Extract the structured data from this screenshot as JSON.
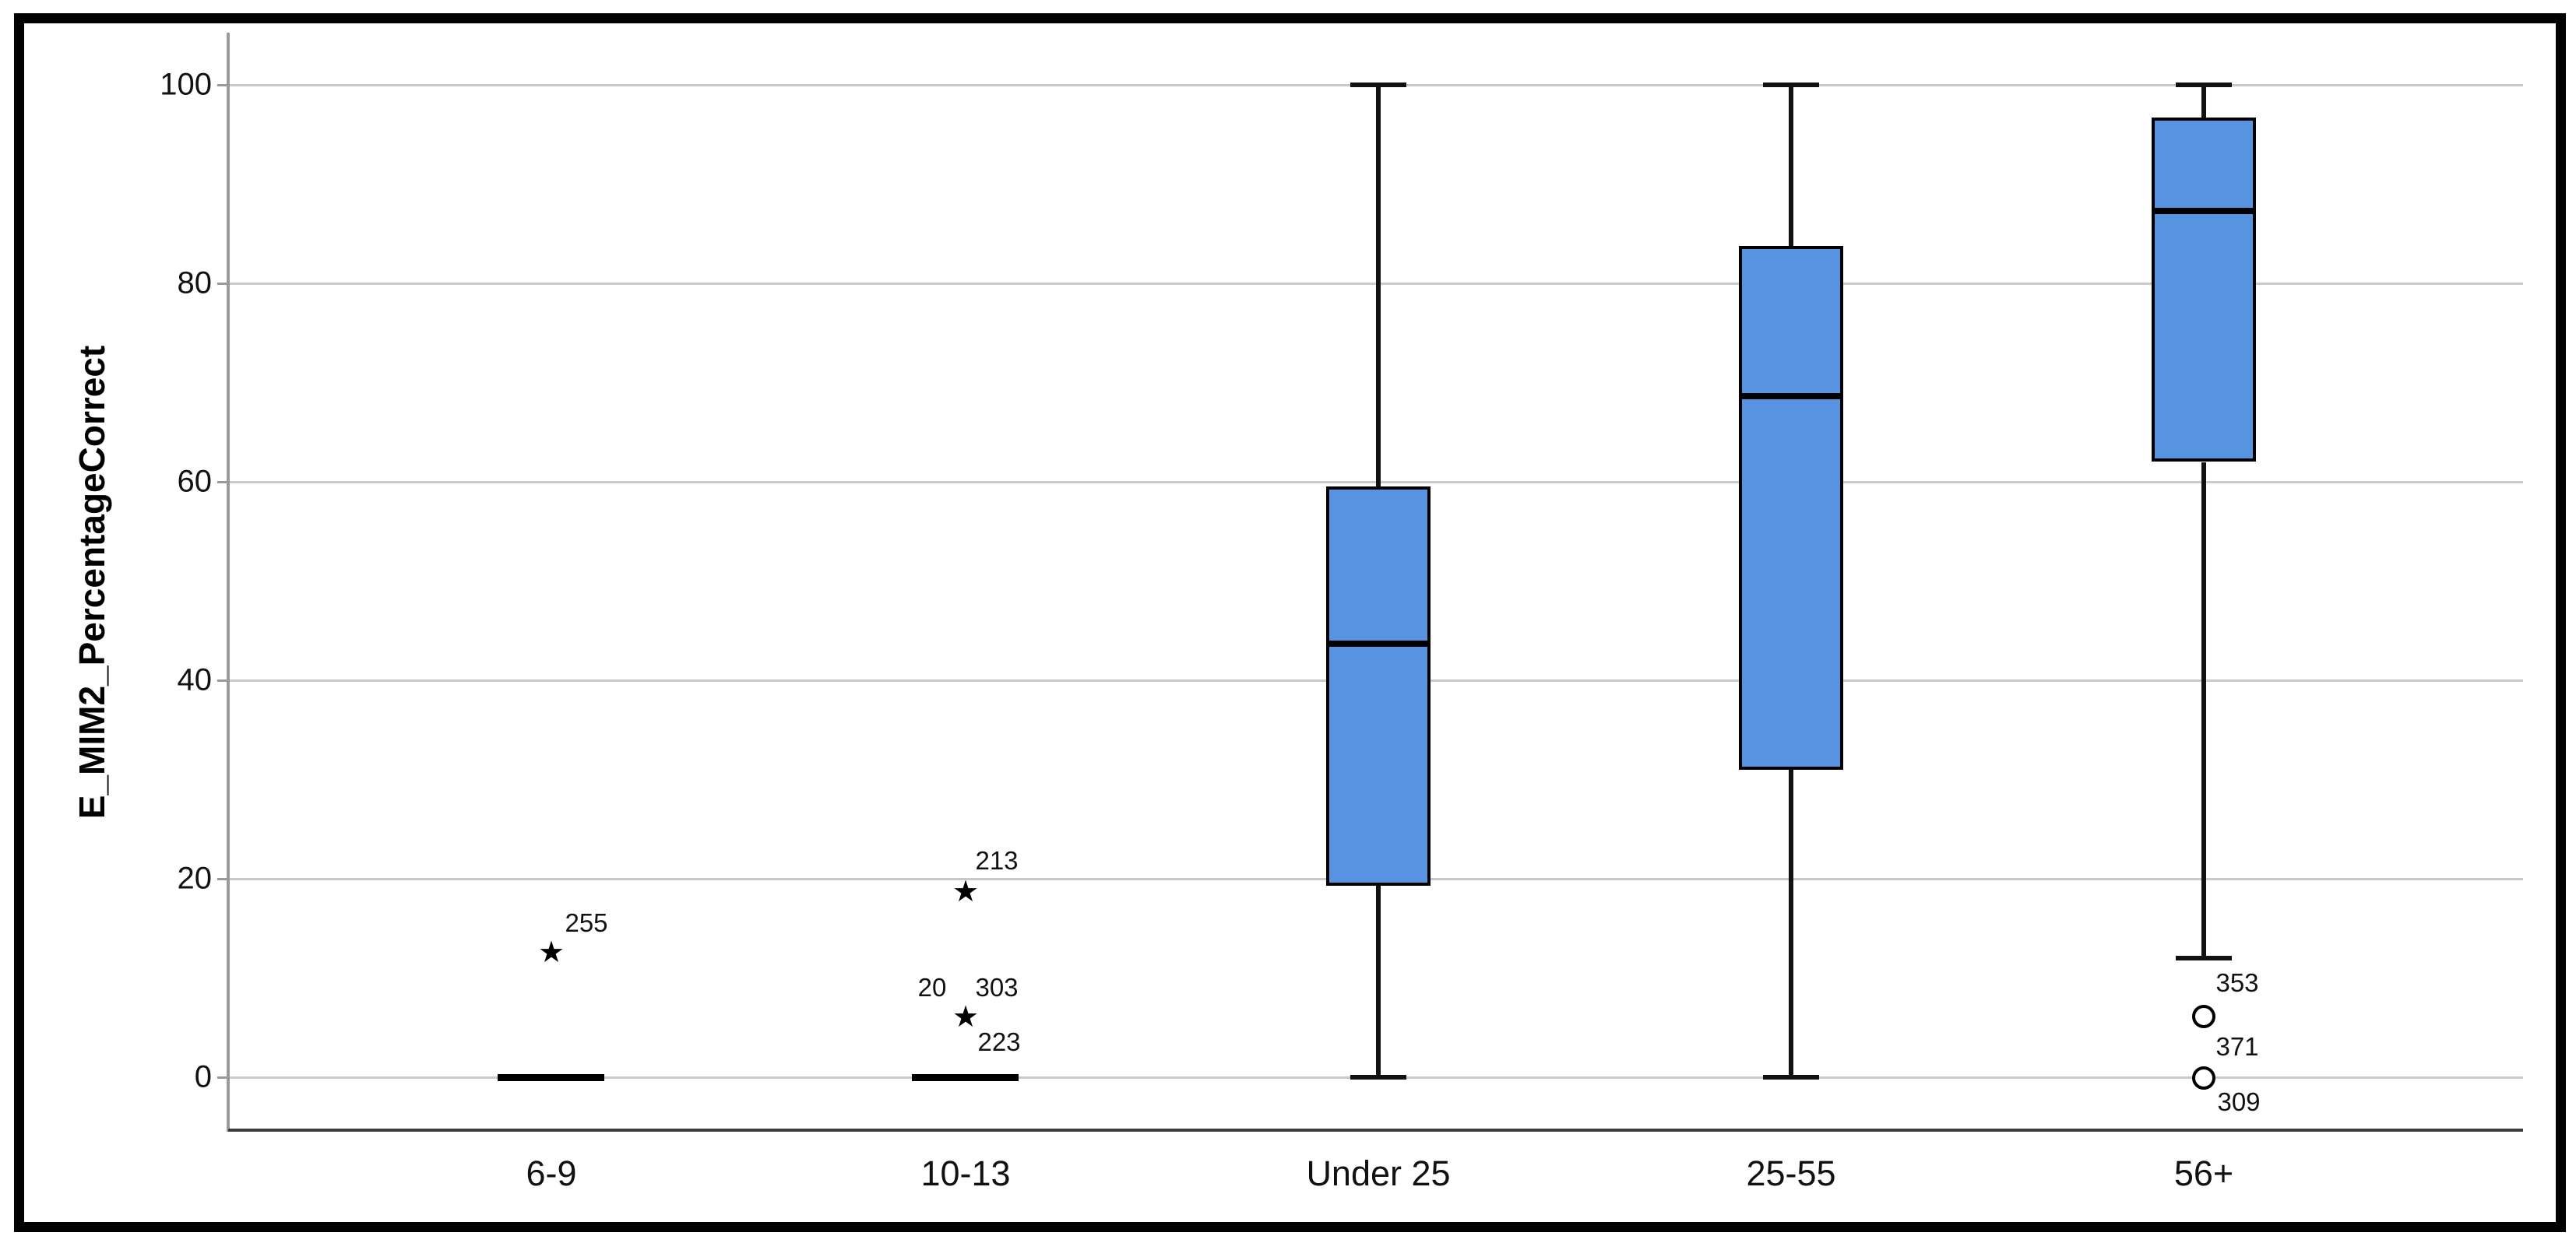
{
  "chart_data": {
    "type": "boxplot",
    "title": "",
    "xlabel": "",
    "ylabel": "E_MIM2_PercentageCorrect",
    "ylim": [
      -8,
      105
    ],
    "y_ticks": [
      0,
      20,
      40,
      60,
      80,
      100
    ],
    "grid": "horizontal",
    "legend": "none",
    "categories": [
      "6-9",
      "10-13",
      "Under 25",
      "25-55",
      "56+"
    ],
    "series": [
      {
        "category": "6-9",
        "collapsed": true,
        "whisker_low": 0,
        "q1": 0,
        "median": 0,
        "q3": 0,
        "whisker_high": 0,
        "outliers": [
          {
            "value": 12.5,
            "marker": "star",
            "labels": [
              {
                "text": "255",
                "dx": 45,
                "dy": -39
              }
            ]
          }
        ]
      },
      {
        "category": "10-13",
        "collapsed": true,
        "whisker_low": 0,
        "q1": 0,
        "median": 0,
        "q3": 0,
        "whisker_high": 0,
        "outliers": [
          {
            "value": 18.6,
            "marker": "star",
            "labels": [
              {
                "text": "213",
                "dx": 40,
                "dy": -41
              }
            ]
          },
          {
            "value": 6.0,
            "marker": "star",
            "labels": [
              {
                "text": "20",
                "dx": -43,
                "dy": -39
              },
              {
                "text": "303",
                "dx": 40,
                "dy": -39
              },
              {
                "text": "223",
                "dx": 43,
                "dy": 31
              }
            ]
          }
        ]
      },
      {
        "category": "Under 25",
        "collapsed": false,
        "whisker_low": 0,
        "q1": 19.3,
        "median": 43.7,
        "q3": 59.5,
        "whisker_high": 100,
        "outliers": []
      },
      {
        "category": "25-55",
        "collapsed": false,
        "whisker_low": 0,
        "q1": 31,
        "median": 68.6,
        "q3": 83.8,
        "whisker_high": 100,
        "outliers": []
      },
      {
        "category": "56+",
        "collapsed": false,
        "whisker_low": 12,
        "q1": 62,
        "median": 87.3,
        "q3": 96.7,
        "whisker_high": 100,
        "outliers": [
          {
            "value": 6.1,
            "marker": "circle",
            "labels": [
              {
                "text": "353",
                "dx": 43,
                "dy": -43
              },
              {
                "text": "371",
                "dx": 43,
                "dy": 39
              }
            ]
          },
          {
            "value": -0.1,
            "marker": "circle",
            "labels": [
              {
                "text": "309",
                "dx": 45,
                "dy": 31
              }
            ]
          }
        ]
      }
    ],
    "colors": {
      "box_fill": "#5793E0",
      "box_border": "#000000",
      "median": "#000000",
      "whisker": "#111111",
      "gridline": "#C9C9C9",
      "y_axis_line": "#9A9A9A",
      "x_axis_line": "#3C3C3C",
      "frame": "#000000",
      "text": "#111111"
    }
  }
}
